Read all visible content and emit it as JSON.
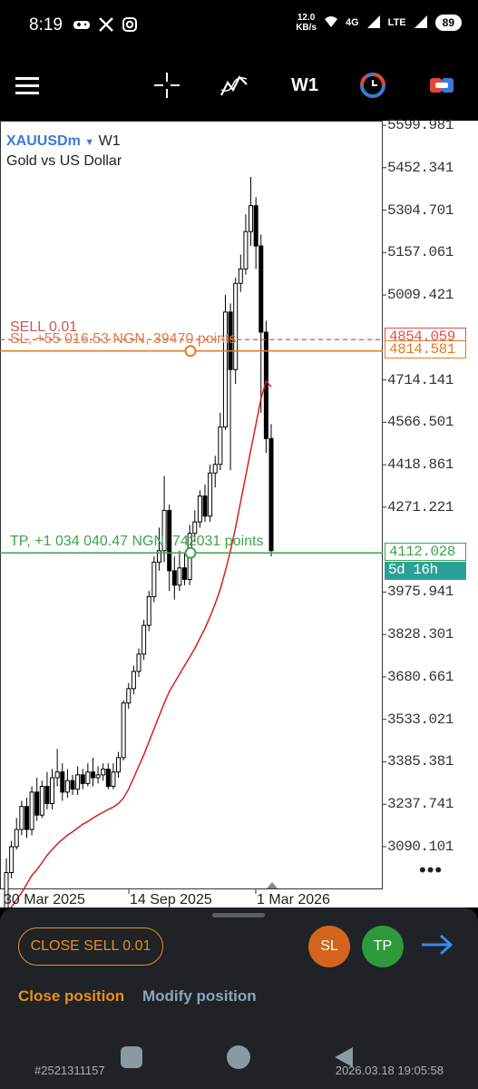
{
  "status_bar": {
    "time": "8:19",
    "speed_value": "12.0",
    "speed_unit": "KB/s",
    "network": "4G",
    "carrier": "LTE",
    "battery": "89"
  },
  "toolbar": {
    "timeframe": "W1",
    "icons": [
      "menu-icon",
      "crosshair-icon",
      "indicators-icon",
      "clock-icon",
      "trade-icon"
    ]
  },
  "chart": {
    "symbol": "XAUUSDm",
    "timeframe": "W1",
    "description": "Gold vs US Dollar",
    "price_levels": [
      "5599.981",
      "5452.341",
      "5304.701",
      "5157.061",
      "5009.421",
      "4714.141",
      "4566.501",
      "4418.861",
      "4271.221",
      "3975.941",
      "3828.301",
      "3680.661",
      "3533.021",
      "3385.381",
      "3237.741",
      "3090.101"
    ],
    "sell_tag": "4854.059",
    "sl_tag": "4814.581",
    "tp_tag": "4112.028",
    "countdown": "5d 16h",
    "sell_label": "SELL 0.01",
    "sl_label": "SL, +55 016.53 NGN, 39470 points",
    "tp_label": "TP, +1 034 040.47 NGN, 742031 points",
    "dates": [
      "30 Mar 2025",
      "14 Sep 2025",
      "1 Mar 2026"
    ],
    "more": "•••"
  },
  "chart_data": {
    "type": "candlestick",
    "title": "XAUUSDm",
    "timeframe": "W1",
    "ylim": [
      3020,
      5600
    ],
    "x_tick_labels": [
      "30 Mar 2025",
      "14 Sep 2025",
      "1 Mar 2026"
    ],
    "candles": [
      [
        2860,
        3000,
        2850,
        3050
      ],
      [
        3000,
        3090,
        2980,
        3110
      ],
      [
        3090,
        3150,
        3080,
        3190
      ],
      [
        3150,
        3230,
        3130,
        3250
      ],
      [
        3230,
        3150,
        3120,
        3260
      ],
      [
        3150,
        3280,
        3130,
        3300
      ],
      [
        3280,
        3200,
        3180,
        3330
      ],
      [
        3200,
        3300,
        3190,
        3320
      ],
      [
        3300,
        3240,
        3220,
        3350
      ],
      [
        3240,
        3330,
        3220,
        3360
      ],
      [
        3330,
        3350,
        3300,
        3430
      ],
      [
        3350,
        3280,
        3250,
        3380
      ],
      [
        3280,
        3320,
        3260,
        3360
      ],
      [
        3320,
        3290,
        3270,
        3340
      ],
      [
        3290,
        3340,
        3270,
        3370
      ],
      [
        3340,
        3310,
        3290,
        3360
      ],
      [
        3310,
        3350,
        3300,
        3380
      ],
      [
        3350,
        3330,
        3300,
        3400
      ],
      [
        3330,
        3340,
        3310,
        3370
      ],
      [
        3340,
        3360,
        3320,
        3380
      ],
      [
        3360,
        3300,
        3290,
        3380
      ],
      [
        3300,
        3350,
        3290,
        3380
      ],
      [
        3350,
        3400,
        3330,
        3420
      ],
      [
        3400,
        3590,
        3390,
        3600
      ],
      [
        3590,
        3640,
        3570,
        3660
      ],
      [
        3640,
        3700,
        3620,
        3720
      ],
      [
        3700,
        3760,
        3680,
        3780
      ],
      [
        3760,
        3860,
        3740,
        3880
      ],
      [
        3860,
        3960,
        3840,
        3980
      ],
      [
        3960,
        4080,
        3940,
        4100
      ],
      [
        4080,
        4120,
        4050,
        4200
      ],
      [
        4120,
        4260,
        4080,
        4380
      ],
      [
        4260,
        4050,
        3980,
        4280
      ],
      [
        4050,
        4000,
        3950,
        4100
      ],
      [
        4000,
        4060,
        3980,
        4120
      ],
      [
        4060,
        4020,
        4000,
        4110
      ],
      [
        4020,
        4180,
        4000,
        4210
      ],
      [
        4180,
        4220,
        4150,
        4260
      ],
      [
        4220,
        4310,
        4200,
        4330
      ],
      [
        4310,
        4240,
        4220,
        4350
      ],
      [
        4240,
        4390,
        4220,
        4420
      ],
      [
        4390,
        4420,
        4340,
        4450
      ],
      [
        4420,
        4550,
        4400,
        4600
      ],
      [
        4550,
        4950,
        4540,
        5010
      ],
      [
        4950,
        4750,
        4400,
        4980
      ],
      [
        4750,
        5050,
        4700,
        5070
      ],
      [
        5050,
        5100,
        5020,
        5150
      ],
      [
        5100,
        5230,
        5080,
        5290
      ],
      [
        5230,
        5320,
        5180,
        5420
      ],
      [
        5320,
        5180,
        5100,
        5350
      ],
      [
        5180,
        4880,
        4600,
        5220
      ],
      [
        4880,
        4510,
        4460,
        4920
      ],
      [
        4510,
        4120,
        4100,
        4560
      ]
    ],
    "moving_average": [
      2860,
      2880,
      2905,
      2930,
      2960,
      2990,
      3010,
      3035,
      3060,
      3080,
      3100,
      3115,
      3130,
      3142,
      3155,
      3168,
      3178,
      3190,
      3200,
      3210,
      3220,
      3228,
      3240,
      3260,
      3290,
      3330,
      3370,
      3410,
      3455,
      3500,
      3545,
      3590,
      3630,
      3660,
      3690,
      3720,
      3750,
      3780,
      3815,
      3850,
      3890,
      3935,
      3985,
      4050,
      4120,
      4200,
      4290,
      4380,
      4470,
      4560,
      4650,
      4710,
      4690
    ]
  },
  "sell_line_price": 4854.059,
  "sl_line_price": 4814.581,
  "tp_line_price": 4112.028,
  "panel": {
    "close_button": "CLOSE SELL 0.01",
    "sl_button": "SL",
    "tp_button": "TP",
    "tab_close": "Close position",
    "tab_modify": "Modify position",
    "ticket": "#2521311157",
    "timestamp": "2026.03.18 19:05:58"
  }
}
